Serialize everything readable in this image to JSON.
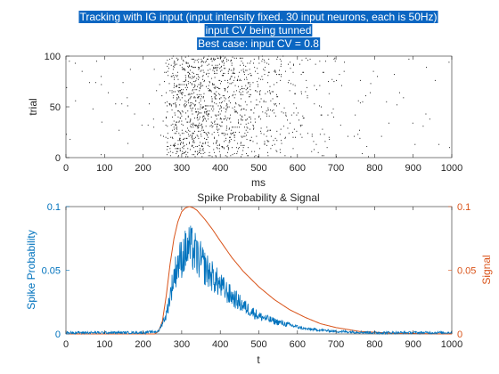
{
  "chart_data": [
    {
      "type": "scatter",
      "title_lines": [
        "Tracking with IG input (input intensity fixed. 30 input neurons, each is 50Hz)",
        "input CV being tunned",
        "Best case: input CV = 0.8"
      ],
      "xlabel": "ms",
      "ylabel": "trial",
      "xlim": [
        0,
        1000
      ],
      "ylim": [
        0,
        100
      ],
      "xticks": [
        "0",
        "100",
        "200",
        "300",
        "400",
        "500",
        "600",
        "700",
        "800",
        "900",
        "1000"
      ],
      "yticks": [
        "0",
        "50",
        "100"
      ],
      "point_color": "#000000",
      "raster": {
        "trials": 100,
        "background_rate_per_ms": 0.0008,
        "dense_window": [
          260,
          480
        ],
        "tail_window": [
          480,
          700
        ]
      }
    },
    {
      "type": "line",
      "title": "Spike Probability & Signal",
      "xlabel": "t",
      "xlim": [
        0,
        1000
      ],
      "xticks": [
        "0",
        "100",
        "200",
        "300",
        "400",
        "500",
        "600",
        "700",
        "800",
        "900",
        "1000"
      ],
      "y_left": {
        "label": "Spike Probability",
        "ylim": [
          0,
          0.1
        ],
        "ticks": [
          "0",
          "0.05",
          "0.1"
        ],
        "color": "#0072bd"
      },
      "y_right": {
        "label": "Signal",
        "ylim": [
          0,
          0.1
        ],
        "ticks": [
          "0",
          "0.05",
          "0.1"
        ],
        "color": "#d95319"
      },
      "series": [
        {
          "axis": "left",
          "color": "#0072bd",
          "x": [
            0,
            100,
            200,
            240,
            260,
            270,
            280,
            290,
            300,
            310,
            320,
            330,
            340,
            350,
            360,
            380,
            400,
            420,
            440,
            460,
            480,
            500,
            540,
            580,
            620,
            660,
            700,
            800,
            900,
            1000
          ],
          "values": [
            0.001,
            0.001,
            0.001,
            0.002,
            0.015,
            0.03,
            0.045,
            0.055,
            0.06,
            0.065,
            0.068,
            0.066,
            0.06,
            0.057,
            0.052,
            0.045,
            0.038,
            0.032,
            0.027,
            0.022,
            0.018,
            0.014,
            0.01,
            0.007,
            0.004,
            0.003,
            0.002,
            0.001,
            0.001,
            0.001
          ]
        },
        {
          "axis": "right",
          "color": "#d95319",
          "x": [
            0,
            230,
            240,
            250,
            260,
            270,
            280,
            290,
            300,
            310,
            320,
            330,
            340,
            360,
            380,
            400,
            430,
            460,
            500,
            540,
            580,
            620,
            660,
            700,
            760,
            850,
            1000
          ],
          "values": [
            0,
            0,
            0.002,
            0.01,
            0.03,
            0.055,
            0.075,
            0.088,
            0.096,
            0.099,
            0.1,
            0.099,
            0.097,
            0.09,
            0.082,
            0.073,
            0.06,
            0.049,
            0.037,
            0.027,
            0.019,
            0.013,
            0.008,
            0.005,
            0.002,
            0.0005,
            0
          ]
        }
      ]
    }
  ]
}
